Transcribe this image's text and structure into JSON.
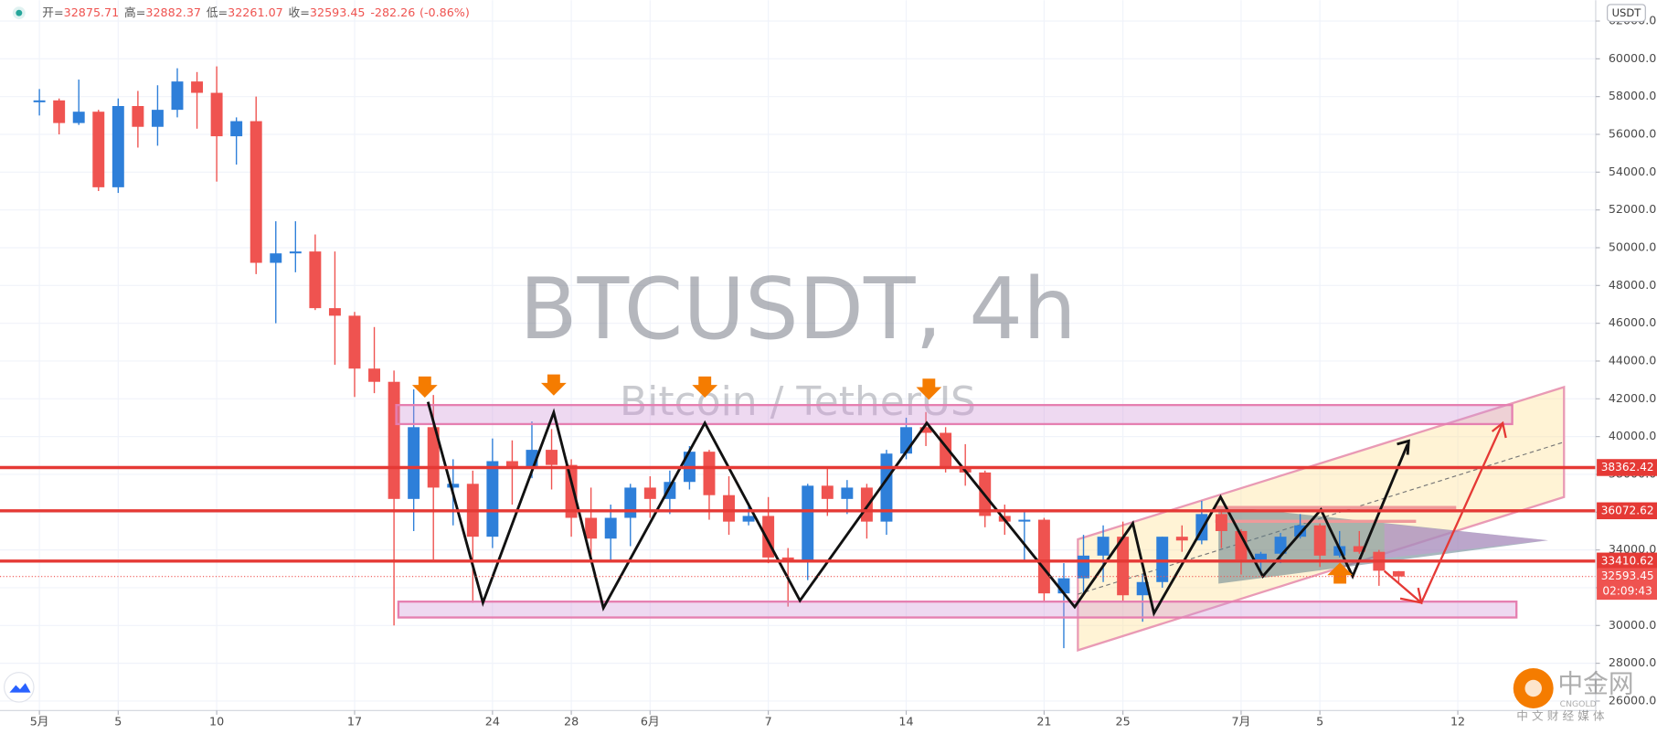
{
  "chart_data": {
    "type": "candlestick",
    "watermark_title": "BTCUSDT, 4h",
    "watermark_subtitle": "Bitcoin / TetherUS",
    "currency_button": "USDT",
    "legend_labels": [
      "开=",
      "高=",
      "低=",
      "收="
    ],
    "change": -282.26,
    "change_percent": {
      "value": -0.86,
      "label": "(-0.86%)"
    },
    "countdown": "02:09:43",
    "brand": {
      "name": "中金网",
      "latin": "CNGOLD",
      "tagline": "中 文 财 经 媒 体"
    },
    "up_color": "#2e7fd9",
    "down_color": "#ef5350",
    "x": [
      "05-01",
      "05-02",
      "05-03",
      "05-04",
      "05-05",
      "05-06",
      "05-07",
      "05-08",
      "05-09",
      "05-10",
      "05-11",
      "05-12",
      "05-13",
      "05-14",
      "05-15",
      "05-16",
      "05-17",
      "05-18",
      "05-19",
      "05-20",
      "05-21",
      "05-22",
      "05-23",
      "05-24",
      "05-25",
      "05-26",
      "05-27",
      "05-28",
      "05-29",
      "05-30",
      "05-31",
      "06-01",
      "06-02",
      "06-03",
      "06-04",
      "06-05",
      "06-06",
      "06-07",
      "06-08",
      "06-09",
      "06-10",
      "06-11",
      "06-12",
      "06-13",
      "06-14",
      "06-15",
      "06-16",
      "06-17",
      "06-18",
      "06-19",
      "06-20",
      "06-21",
      "06-22",
      "06-23",
      "06-24",
      "06-25",
      "06-26",
      "06-27",
      "06-28",
      "06-29",
      "06-30",
      "07-01",
      "07-02",
      "07-03",
      "07-04",
      "07-05",
      "07-06",
      "07-07",
      "07-08",
      "07-09"
    ],
    "open": [
      57700,
      57800,
      56600,
      57200,
      53200,
      57500,
      56400,
      57300,
      58800,
      58200,
      55900,
      56700,
      49200,
      49700,
      49800,
      46800,
      46400,
      43600,
      42900,
      36700,
      40500,
      37300,
      37500,
      34700,
      38700,
      38400,
      39300,
      38500,
      35700,
      34600,
      35700,
      37300,
      36700,
      37600,
      39200,
      36900,
      35500,
      35800,
      33600,
      33400,
      37400,
      36700,
      37300,
      35500,
      39100,
      40500,
      40200,
      38300,
      38100,
      35800,
      35500,
      35600,
      31700,
      32500,
      33700,
      34700,
      31600,
      32300,
      34700,
      34500,
      35900,
      35000,
      33500,
      33800,
      34700,
      35300,
      33700,
      34200,
      33900,
      32875.71
    ],
    "high": [
      58400,
      57900,
      58900,
      57300,
      57900,
      58300,
      58600,
      59500,
      59300,
      59600,
      56900,
      58000,
      51400,
      51400,
      50700,
      49800,
      46600,
      45800,
      43500,
      42500,
      42200,
      38800,
      38200,
      39900,
      39800,
      40800,
      40400,
      38800,
      37300,
      36400,
      37500,
      37900,
      38200,
      39500,
      39300,
      37900,
      36500,
      36800,
      34100,
      37500,
      38400,
      37700,
      37500,
      39300,
      41000,
      41300,
      40500,
      39600,
      38200,
      36400,
      36100,
      35700,
      33300,
      34800,
      35300,
      35500,
      32700,
      34700,
      35300,
      36600,
      36000,
      35100,
      33900,
      34900,
      35900,
      35400,
      35000,
      35000,
      34000,
      32882.37
    ],
    "low": [
      57000,
      56000,
      56500,
      53000,
      52900,
      55300,
      55400,
      56900,
      56300,
      53500,
      54400,
      48600,
      46000,
      48700,
      46700,
      43800,
      42100,
      42300,
      30000,
      35000,
      33500,
      35300,
      31200,
      34100,
      36400,
      37800,
      37200,
      34700,
      33600,
      33400,
      34200,
      35700,
      35900,
      37200,
      35600,
      34800,
      35300,
      33300,
      31000,
      32400,
      35800,
      35900,
      34600,
      34800,
      38800,
      39500,
      38100,
      37400,
      35200,
      34800,
      33400,
      31300,
      28800,
      31700,
      32300,
      31300,
      30200,
      32000,
      33900,
      34300,
      34100,
      32700,
      32700,
      33300,
      34600,
      33100,
      33600,
      33800,
      32100,
      32261.07
    ],
    "close": [
      57800,
      56600,
      57200,
      53200,
      57500,
      56400,
      57300,
      58800,
      58200,
      55900,
      56700,
      49200,
      49700,
      49800,
      46800,
      46400,
      43600,
      42900,
      36700,
      40500,
      37300,
      37500,
      34700,
      38700,
      38400,
      39300,
      38500,
      35700,
      34600,
      35700,
      37300,
      36700,
      37600,
      39200,
      36900,
      35500,
      35800,
      33600,
      33400,
      37400,
      36700,
      37300,
      35500,
      39100,
      40500,
      40200,
      38300,
      38100,
      35800,
      35500,
      35600,
      31700,
      32500,
      33700,
      34700,
      31600,
      32300,
      34700,
      34500,
      35900,
      35000,
      33500,
      33800,
      34700,
      35300,
      33700,
      34200,
      33900,
      32900,
      32593.45
    ],
    "price_lines": [
      38362.42,
      36072.62,
      33410.62
    ],
    "xlim": [
      "04-29",
      "07-19"
    ],
    "xticks": [
      {
        "value": "05-01",
        "label": "5月"
      },
      {
        "value": "05-05",
        "label": "5"
      },
      {
        "value": "05-10",
        "label": "10"
      },
      {
        "value": "05-17",
        "label": "17"
      },
      {
        "value": "05-24",
        "label": "24"
      },
      {
        "value": "05-28",
        "label": "28"
      },
      {
        "value": "06-01",
        "label": "6月"
      },
      {
        "value": "06-07",
        "label": "7"
      },
      {
        "value": "06-14",
        "label": "14"
      },
      {
        "value": "06-21",
        "label": "21"
      },
      {
        "value": "06-25",
        "label": "25"
      },
      {
        "value": "07-01",
        "label": "7月"
      },
      {
        "value": "07-05",
        "label": "5"
      },
      {
        "value": "07-12",
        "label": "12"
      }
    ],
    "ylim": [
      25500,
      63100
    ],
    "yticks": [
      {
        "value": 26000,
        "label": "26000.00"
      },
      {
        "value": 28000,
        "label": "28000.00"
      },
      {
        "value": 30000,
        "label": "30000.00"
      },
      {
        "value": 32000,
        "label": "32000.00"
      },
      {
        "value": 34000,
        "label": "34000.00"
      },
      {
        "value": 36000,
        "label": "36000.00"
      },
      {
        "value": 38000,
        "label": "38000.00"
      },
      {
        "value": 40000,
        "label": "40000.00"
      },
      {
        "value": 42000,
        "label": "42000.00"
      },
      {
        "value": 44000,
        "label": "44000.00"
      },
      {
        "value": 46000,
        "label": "46000.00"
      },
      {
        "value": 48000,
        "label": "48000.00"
      },
      {
        "value": 50000,
        "label": "50000.00"
      },
      {
        "value": 52000,
        "label": "52000.00"
      },
      {
        "value": 54000,
        "label": "54000.00"
      },
      {
        "value": 56000,
        "label": "56000.00"
      },
      {
        "value": 58000,
        "label": "58000.00"
      },
      {
        "value": 60000,
        "label": "60000.00"
      },
      {
        "value": 62000,
        "label": "62000.00"
      }
    ],
    "grid": true
  }
}
